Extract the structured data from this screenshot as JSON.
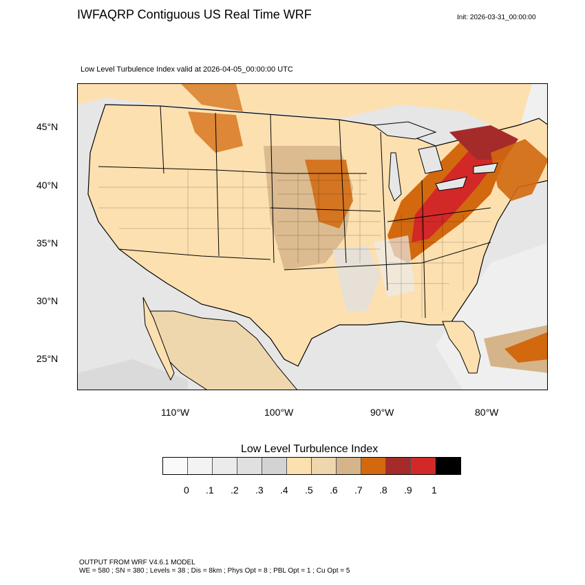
{
  "header": {
    "title": "IWFAQRP Contiguous US Real Time WRF",
    "init": "Init: 2026-03-31_00:00:00",
    "valid": "Low Level Turbulence Index valid at 2026-04-05_00:00:00 UTC"
  },
  "map": {
    "lat_labels": [
      "45°N",
      "40°N",
      "35°N",
      "30°N",
      "25°N"
    ],
    "lon_labels": [
      "110°W",
      "100°W",
      "90°W",
      "80°W"
    ]
  },
  "legend": {
    "title": "Low Level Turbulence Index",
    "colors": [
      "#fafafa",
      "#f3f3f3",
      "#ebebeb",
      "#e0e0e0",
      "#d3d3d3",
      "#fde0b0",
      "#eed6ad",
      "#d5b48a",
      "#d2690f",
      "#a52b2a",
      "#d32828",
      "#000000"
    ],
    "tick_labels": [
      "0",
      ".1",
      ".2",
      ".3",
      ".4",
      ".5",
      ".6",
      ".7",
      ".8",
      ".9",
      "1"
    ]
  },
  "footer": {
    "line1": "OUTPUT FROM WRF V4.6.1 MODEL",
    "line2": "WE = 580 ; SN = 380 ; Levels = 38 ; Dis = 8km ; Phys Opt = 8 ; PBL Opt = 1 ; Cu Opt = 5"
  },
  "colors": {
    "land_base": "#fde0b0",
    "water": "#e6e6e6",
    "high": "#d2690f",
    "very_high": "#d32828"
  }
}
